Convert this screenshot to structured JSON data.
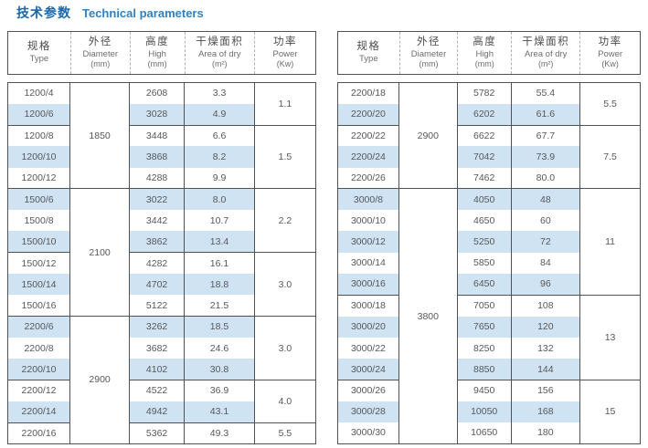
{
  "title": {
    "zh": "技术参数",
    "en": "Technical parameters"
  },
  "colors": {
    "title_zh": "#1a67a9",
    "title_en": "#2f80c2",
    "row_highlight": "#cfe3f3",
    "border": "#505153",
    "text": "#56575a"
  },
  "header_columns": [
    {
      "zh": "规格",
      "en": "Type",
      "unit": ""
    },
    {
      "zh": "外径",
      "en": "Diameter",
      "unit": "(mm)"
    },
    {
      "zh": "高度",
      "en": "High",
      "unit": "(mm)"
    },
    {
      "zh": "干燥面积",
      "en": "Area of dry",
      "unit": "(m²)"
    },
    {
      "zh": "功率",
      "en": "Power",
      "unit": "(Kw)"
    }
  ],
  "tables": [
    {
      "name": "left",
      "rows": [
        {
          "type": "1200/4",
          "diameter": {
            "value": "1850",
            "rowspan": 5
          },
          "high": "2608",
          "area": "3.3",
          "power": {
            "value": "1.1",
            "rowspan": 2
          }
        },
        {
          "type": "1200/6",
          "high": "3028",
          "area": "4.9"
        },
        {
          "type": "1200/8",
          "high": "3448",
          "area": "6.6",
          "power": {
            "value": "1.5",
            "rowspan": 3
          }
        },
        {
          "type": "1200/10",
          "high": "3868",
          "area": "8.2"
        },
        {
          "type": "1200/12",
          "high": "4288",
          "area": "9.9"
        },
        {
          "type": "1500/6",
          "diameter": {
            "value": "2100",
            "rowspan": 6
          },
          "high": "3022",
          "area": "8.0",
          "power": {
            "value": "2.2",
            "rowspan": 3
          }
        },
        {
          "type": "1500/8",
          "high": "3442",
          "area": "10.7"
        },
        {
          "type": "1500/10",
          "high": "3862",
          "area": "13.4"
        },
        {
          "type": "1500/12",
          "high": "4282",
          "area": "16.1",
          "power": {
            "value": "3.0",
            "rowspan": 3
          }
        },
        {
          "type": "1500/14",
          "high": "4702",
          "area": "18.8"
        },
        {
          "type": "1500/16",
          "high": "5122",
          "area": "21.5"
        },
        {
          "type": "2200/6",
          "diameter": {
            "value": "2900",
            "rowspan": 6
          },
          "high": "3262",
          "area": "18.5",
          "power": {
            "value": "3.0",
            "rowspan": 3
          }
        },
        {
          "type": "2200/8",
          "high": "3682",
          "area": "24.6"
        },
        {
          "type": "2200/10",
          "high": "4102",
          "area": "30.8"
        },
        {
          "type": "2200/12",
          "high": "4522",
          "area": "36.9",
          "power": {
            "value": "4.0",
            "rowspan": 2
          }
        },
        {
          "type": "2200/14",
          "high": "4942",
          "area": "43.1"
        },
        {
          "type": "2200/16",
          "high": "5362",
          "area": "49.3",
          "power": {
            "value": "5.5",
            "rowspan": 1
          }
        }
      ]
    },
    {
      "name": "right",
      "rows": [
        {
          "type": "2200/18",
          "diameter": {
            "value": "2900",
            "rowspan": 5
          },
          "high": "5782",
          "area": "55.4",
          "power": {
            "value": "5.5",
            "rowspan": 2
          }
        },
        {
          "type": "2200/20",
          "high": "6202",
          "area": "61.6"
        },
        {
          "type": "2200/22",
          "high": "6622",
          "area": "67.7",
          "power": {
            "value": "7.5",
            "rowspan": 3
          }
        },
        {
          "type": "2200/24",
          "high": "7042",
          "area": "73.9"
        },
        {
          "type": "2200/26",
          "high": "7462",
          "area": "80.0"
        },
        {
          "type": "3000/8",
          "diameter": {
            "value": "3800",
            "rowspan": 12
          },
          "high": "4050",
          "area": "48",
          "power": {
            "value": "11",
            "rowspan": 5
          }
        },
        {
          "type": "3000/10",
          "high": "4650",
          "area": "60"
        },
        {
          "type": "3000/12",
          "high": "5250",
          "area": "72"
        },
        {
          "type": "3000/14",
          "high": "5850",
          "area": "84"
        },
        {
          "type": "3000/16",
          "high": "6450",
          "area": "96"
        },
        {
          "type": "3000/18",
          "high": "7050",
          "area": "108",
          "power": {
            "value": "13",
            "rowspan": 4
          }
        },
        {
          "type": "3000/20",
          "high": "7650",
          "area": "120"
        },
        {
          "type": "3000/22",
          "high": "8250",
          "area": "132"
        },
        {
          "type": "3000/24",
          "high": "8850",
          "area": "144"
        },
        {
          "type": "3000/26",
          "high": "9450",
          "area": "156",
          "power": {
            "value": "15",
            "rowspan": 3
          }
        },
        {
          "type": "3000/28",
          "high": "10050",
          "area": "168"
        },
        {
          "type": "3000/30",
          "high": "10650",
          "area": "180"
        }
      ]
    }
  ]
}
